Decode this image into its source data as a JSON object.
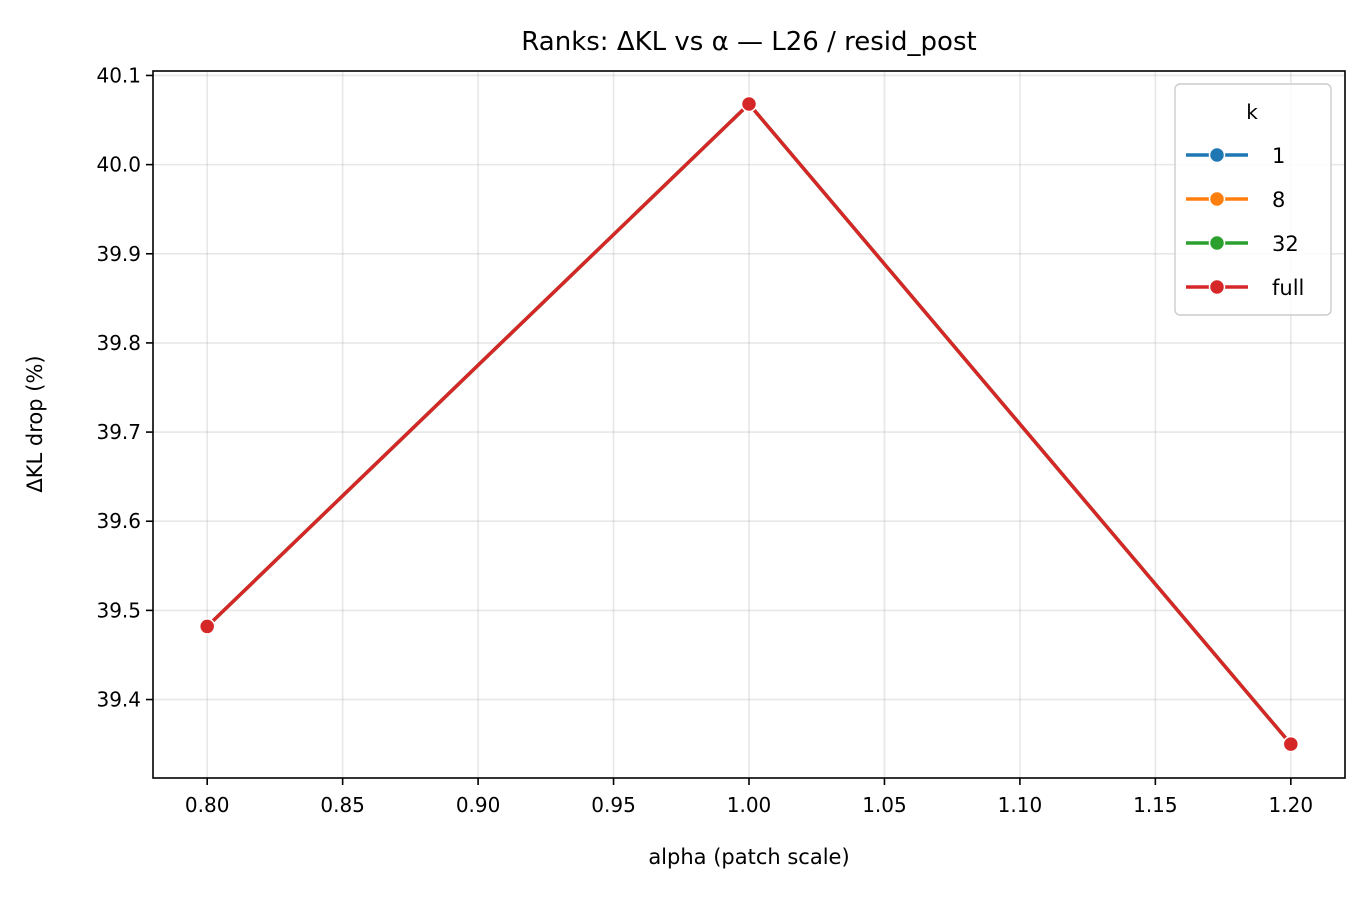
{
  "chart_data": {
    "type": "line",
    "title": "Ranks: ΔKL vs α — L26 / resid_post",
    "xlabel": "alpha (patch scale)",
    "ylabel": "ΔKL drop (%)",
    "x": [
      0.8,
      1.0,
      1.2
    ],
    "xlim": [
      0.78,
      1.22
    ],
    "ylim": [
      39.312,
      40.105
    ],
    "xticks": [
      "0.80",
      "0.85",
      "0.90",
      "0.95",
      "1.00",
      "1.05",
      "1.10",
      "1.15",
      "1.20"
    ],
    "yticks": [
      "39.4",
      "39.5",
      "39.6",
      "39.7",
      "39.8",
      "39.9",
      "40.0",
      "40.1"
    ],
    "grid": true,
    "legend": {
      "title": "k",
      "position": "top-right"
    },
    "series": [
      {
        "name": "1",
        "color": "#1f77b4",
        "values": [
          39.482,
          40.068,
          39.35
        ]
      },
      {
        "name": "8",
        "color": "#ff7f0e",
        "values": [
          39.482,
          40.068,
          39.35
        ]
      },
      {
        "name": "32",
        "color": "#2ca02c",
        "values": [
          39.482,
          40.068,
          39.35
        ]
      },
      {
        "name": "full",
        "color": "#d62728",
        "values": [
          39.482,
          40.068,
          39.35
        ]
      }
    ]
  }
}
